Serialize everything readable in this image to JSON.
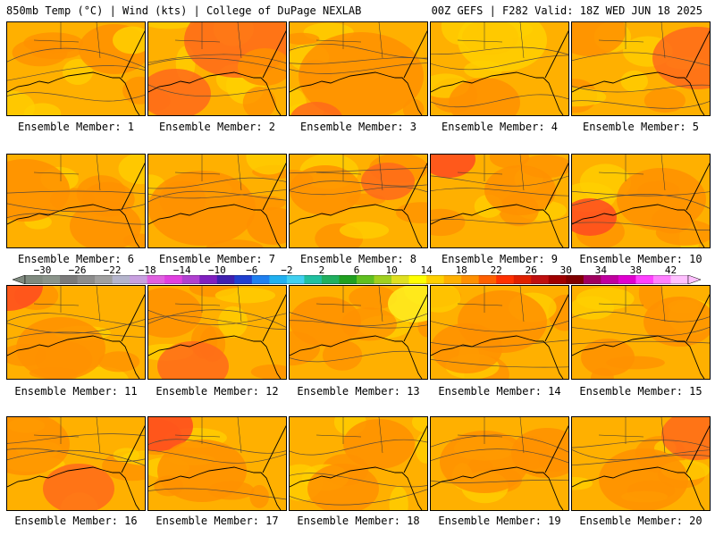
{
  "header": {
    "left": "850mb Temp (°C) | Wind (kts) | College of DuPage NEXLAB",
    "right": "00Z GEFS | F282 Valid: 18Z WED JUN 18 2025"
  },
  "panels": [
    {
      "label": "Ensemble Member: 1"
    },
    {
      "label": "Ensemble Member: 2"
    },
    {
      "label": "Ensemble Member: 3"
    },
    {
      "label": "Ensemble Member: 4"
    },
    {
      "label": "Ensemble Member: 5"
    },
    {
      "label": "Ensemble Member: 6"
    },
    {
      "label": "Ensemble Member: 7"
    },
    {
      "label": "Ensemble Member: 8"
    },
    {
      "label": "Ensemble Member: 9"
    },
    {
      "label": "Ensemble Member: 10"
    },
    {
      "label": "Ensemble Member: 11"
    },
    {
      "label": "Ensemble Member: 12"
    },
    {
      "label": "Ensemble Member: 13"
    },
    {
      "label": "Ensemble Member: 14"
    },
    {
      "label": "Ensemble Member: 15"
    },
    {
      "label": "Ensemble Member: 16"
    },
    {
      "label": "Ensemble Member: 17"
    },
    {
      "label": "Ensemble Member: 18"
    },
    {
      "label": "Ensemble Member: 19"
    },
    {
      "label": "Ensemble Member: 20"
    }
  ],
  "colorbar": {
    "ticks": [
      "−30",
      "−26",
      "−22",
      "−18",
      "−14",
      "−10",
      "−6",
      "−2",
      "2",
      "6",
      "10",
      "14",
      "18",
      "22",
      "26",
      "30",
      "34",
      "38",
      "42"
    ],
    "colors": [
      "#7f8a7f",
      "#8a948a",
      "#7a7a7a",
      "#8c8c8c",
      "#a0a0a0",
      "#b4b4cc",
      "#c8a0e0",
      "#e060e0",
      "#e040e0",
      "#b040d0",
      "#8020c0",
      "#4020b0",
      "#2040d0",
      "#2080f0",
      "#20b0f0",
      "#40d0f0",
      "#20c0a0",
      "#20b060",
      "#20a020",
      "#60c020",
      "#a0d020",
      "#e0e020",
      "#ffff00",
      "#ffd000",
      "#ffb000",
      "#ff9000",
      "#ff6000",
      "#ff3000",
      "#e02000",
      "#c01010",
      "#a00000",
      "#800000",
      "#a00060",
      "#c000a0",
      "#e000d0",
      "#ff40ff",
      "#ff80ff",
      "#ffc0ff"
    ]
  },
  "palette": {
    "base": "#ffb000",
    "warm": "#ff9000",
    "hot": "#ff6a1a",
    "hotter": "#ff4a20",
    "cool": "#ffd000",
    "coolest": "#ffee20"
  }
}
